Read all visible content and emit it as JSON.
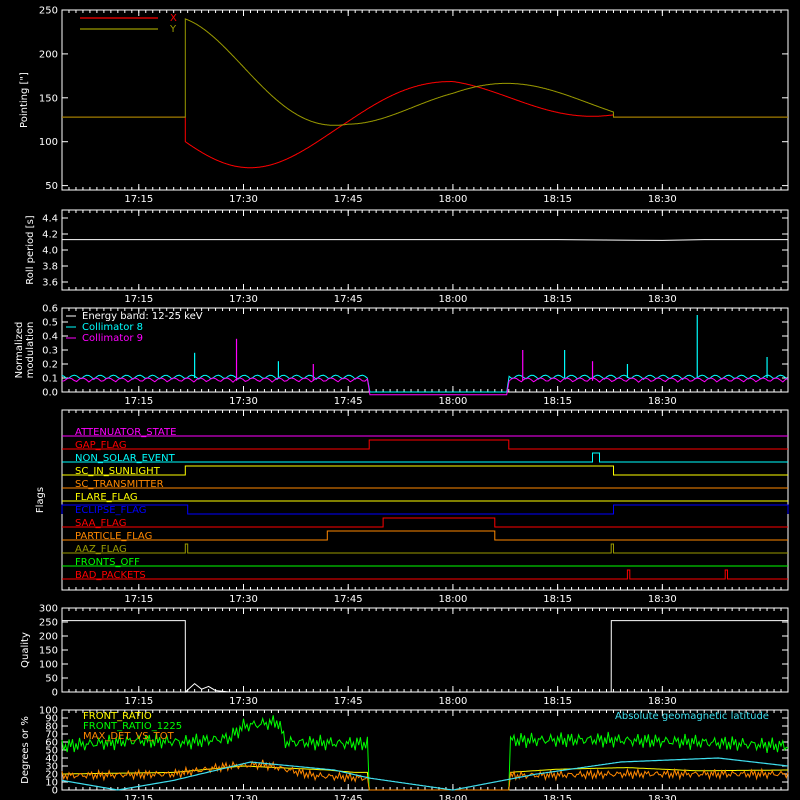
{
  "colors": {
    "background": "#000000",
    "axis": "#ffffff",
    "red": "#ff0000",
    "olive": "#9a9a00",
    "cyan": "#00ffff",
    "magenta": "#ff00ff",
    "green": "#00ff00",
    "yellow": "#ffff00",
    "orange": "#ff8800",
    "blue": "#0000ff",
    "light_cyan": "#40e0f0"
  },
  "x_axis": {
    "range": [
      "17:04",
      "18:48"
    ],
    "ticks": [
      "17:15",
      "17:30",
      "17:45",
      "18:00",
      "18:15",
      "18:30"
    ]
  },
  "chart_data": [
    {
      "id": "pointing",
      "type": "line",
      "ylabel": "Pointing [\"]",
      "ylim": [
        45,
        250
      ],
      "yticks": [
        "50",
        "100",
        "150",
        "200",
        "250"
      ],
      "legend": [
        "X",
        "Y"
      ],
      "legend_placement": "top-left",
      "series": [
        {
          "name": "X",
          "color": "red",
          "baseline": 128,
          "active_range": [
            "17:21:40",
            "18:23:00"
          ],
          "center": [
            [
              "17:21:40",
              100
            ],
            [
              "17:45",
              125
            ],
            [
              "18:00",
              145
            ],
            [
              "18:23",
              150
            ]
          ],
          "amplitude": [
            [
              "17:21:40",
              50
            ],
            [
              "17:45",
              30
            ],
            [
              "18:00",
              25
            ],
            [
              "18:23",
              20
            ]
          ]
        },
        {
          "name": "Y",
          "color": "olive",
          "baseline": 128,
          "active_range": [
            "17:21:40",
            "18:23:00"
          ],
          "center": [
            [
              "17:21:40",
              165
            ],
            [
              "17:45",
              155
            ],
            [
              "18:00",
              145
            ],
            [
              "18:23",
              140
            ]
          ],
          "amplitude": [
            [
              "17:21:40",
              75
            ],
            [
              "17:45",
              35
            ],
            [
              "18:00",
              25
            ],
            [
              "18:23",
              20
            ]
          ]
        }
      ]
    },
    {
      "id": "roll-period",
      "type": "line",
      "ylabel": "Roll period [s]",
      "ylim": [
        3.5,
        4.5
      ],
      "yticks": [
        "3.6",
        "3.8",
        "4.0",
        "4.2",
        "4.4"
      ],
      "series": [
        {
          "name": "",
          "color": "axis",
          "x": [
            "17:04",
            "17:15",
            "17:30",
            "17:45",
            "18:00",
            "18:15",
            "18:30",
            "18:36",
            "18:48"
          ],
          "y": [
            4.13,
            4.13,
            4.13,
            4.13,
            4.13,
            4.13,
            4.12,
            4.13,
            4.13
          ]
        }
      ]
    },
    {
      "id": "modulation",
      "type": "line",
      "ylabel": [
        "Normalized",
        "modulation"
      ],
      "ylim": [
        0.0,
        0.6
      ],
      "yticks": [
        "0.0",
        "0.1",
        "0.2",
        "0.3",
        "0.4",
        "0.5",
        "0.6"
      ],
      "legend": [
        "Energy band: 12-25 keV",
        "Collimator 8",
        "Collimator 9"
      ],
      "legend_placement": "top-left",
      "gap_range": [
        "17:48",
        "18:08"
      ],
      "series": [
        {
          "name": "Collimator 8",
          "color": "cyan",
          "level": 0.1,
          "spikes": [
            [
              "17:23",
              0.28
            ],
            [
              "17:35",
              0.22
            ],
            [
              "18:16",
              0.3
            ],
            [
              "18:25",
              0.2
            ],
            [
              "18:35",
              0.55
            ],
            [
              "18:45",
              0.25
            ]
          ]
        },
        {
          "name": "Collimator 9",
          "color": "magenta",
          "level": 0.08,
          "spikes": [
            [
              "17:29",
              0.38
            ],
            [
              "17:40",
              0.2
            ],
            [
              "18:10",
              0.3
            ],
            [
              "18:20",
              0.22
            ]
          ]
        }
      ]
    },
    {
      "id": "flags",
      "type": "line",
      "ylabel": "Flags",
      "rows": [
        {
          "label": "ATTENUATOR_STATE",
          "color": "magenta",
          "segments": []
        },
        {
          "label": "GAP_FLAG",
          "color": "red",
          "segments": [
            [
              "17:48",
              "18:08"
            ]
          ]
        },
        {
          "label": "NON_SOLAR_EVENT",
          "color": "cyan",
          "segments": [
            [
              "18:20",
              "18:21"
            ]
          ]
        },
        {
          "label": "SC_IN_SUNLIGHT",
          "color": "yellow",
          "segments": [
            [
              "17:21:40",
              "18:23"
            ]
          ]
        },
        {
          "label": "SC_TRANSMITTER",
          "color": "orange",
          "segments": []
        },
        {
          "label": "FLARE_FLAG",
          "color": "yellow",
          "segments": []
        },
        {
          "label": "ECLIPSE_FLAG",
          "color": "blue",
          "segments": [
            [
              "17:04",
              "17:22"
            ],
            [
              "18:23",
              "18:48"
            ]
          ]
        },
        {
          "label": "SAA_FLAG",
          "color": "red",
          "segments": [
            [
              "17:50",
              "18:06"
            ]
          ]
        },
        {
          "label": "PARTICLE_FLAG",
          "color": "orange",
          "segments": [
            [
              "17:42",
              "18:06"
            ]
          ]
        },
        {
          "label": "AAZ_FLAG",
          "color": "olive",
          "segments": [
            [
              "17:21:40",
              "17:22"
            ],
            [
              "18:22:40",
              "18:23"
            ]
          ]
        },
        {
          "label": "FRONTS_OFF",
          "color": "green",
          "segments": []
        },
        {
          "label": "BAD_PACKETS",
          "color": "red",
          "segments": [
            [
              "18:25",
              "18:25:20"
            ],
            [
              "18:39",
              "18:39:20"
            ]
          ]
        }
      ]
    },
    {
      "id": "quality",
      "type": "line",
      "ylabel": "Quality",
      "ylim": [
        0,
        300
      ],
      "yticks": [
        "0",
        "50",
        "100",
        "150",
        "200",
        "250",
        "300"
      ],
      "series": [
        {
          "name": "",
          "color": "axis",
          "x": [
            "17:04",
            "17:21:40",
            "17:21:41",
            "17:23",
            "17:24",
            "17:25",
            "17:26",
            "17:28",
            "18:22:40",
            "18:22:41",
            "18:48"
          ],
          "y": [
            255,
            255,
            0,
            30,
            10,
            20,
            5,
            0,
            0,
            255,
            255
          ]
        }
      ]
    },
    {
      "id": "ratios",
      "type": "line",
      "ylabel": "Degrees or %",
      "ylim": [
        0,
        100
      ],
      "yticks": [
        "0",
        "10",
        "20",
        "30",
        "40",
        "50",
        "60",
        "70",
        "80",
        "90",
        "100"
      ],
      "legend": [
        "FRONT_RATIO",
        "FRONT_RATIO_1225",
        "MAX_DET_VS_TOT",
        "Absolute geomagnetic latitude"
      ],
      "gap_range": [
        "17:48",
        "18:08"
      ],
      "series": [
        {
          "name": "FRONT_RATIO",
          "color": "yellow",
          "x": [
            "17:04",
            "17:20",
            "17:30",
            "17:42",
            "17:46",
            "18:08",
            "18:15",
            "18:25",
            "18:35",
            "18:48"
          ],
          "y": [
            20,
            22,
            30,
            25,
            22,
            22,
            26,
            28,
            24,
            25
          ]
        },
        {
          "name": "FRONT_RATIO_1225",
          "color": "green",
          "x": [
            "17:04",
            "17:15",
            "17:22",
            "17:28",
            "17:30",
            "17:35",
            "17:36",
            "17:46",
            "18:08",
            "18:20",
            "18:35",
            "18:48"
          ],
          "y": [
            55,
            62,
            60,
            65,
            80,
            85,
            60,
            58,
            62,
            63,
            60,
            55
          ]
        },
        {
          "name": "MAX_DET_VS_TOT",
          "color": "orange",
          "x": [
            "17:04",
            "17:20",
            "17:28",
            "17:33",
            "17:40",
            "17:47",
            "18:08",
            "18:25",
            "18:48"
          ],
          "y": [
            18,
            20,
            30,
            32,
            18,
            15,
            18,
            20,
            20
          ]
        },
        {
          "name": "Absolute geomagnetic latitude",
          "color": "light_cyan",
          "x": [
            "17:04",
            "17:12",
            "17:20",
            "17:31",
            "17:43",
            "17:48",
            "18:00",
            "18:12",
            "18:24",
            "18:38",
            "18:48"
          ],
          "y": [
            12,
            0,
            12,
            35,
            25,
            15,
            0,
            20,
            35,
            40,
            30
          ]
        }
      ]
    }
  ]
}
